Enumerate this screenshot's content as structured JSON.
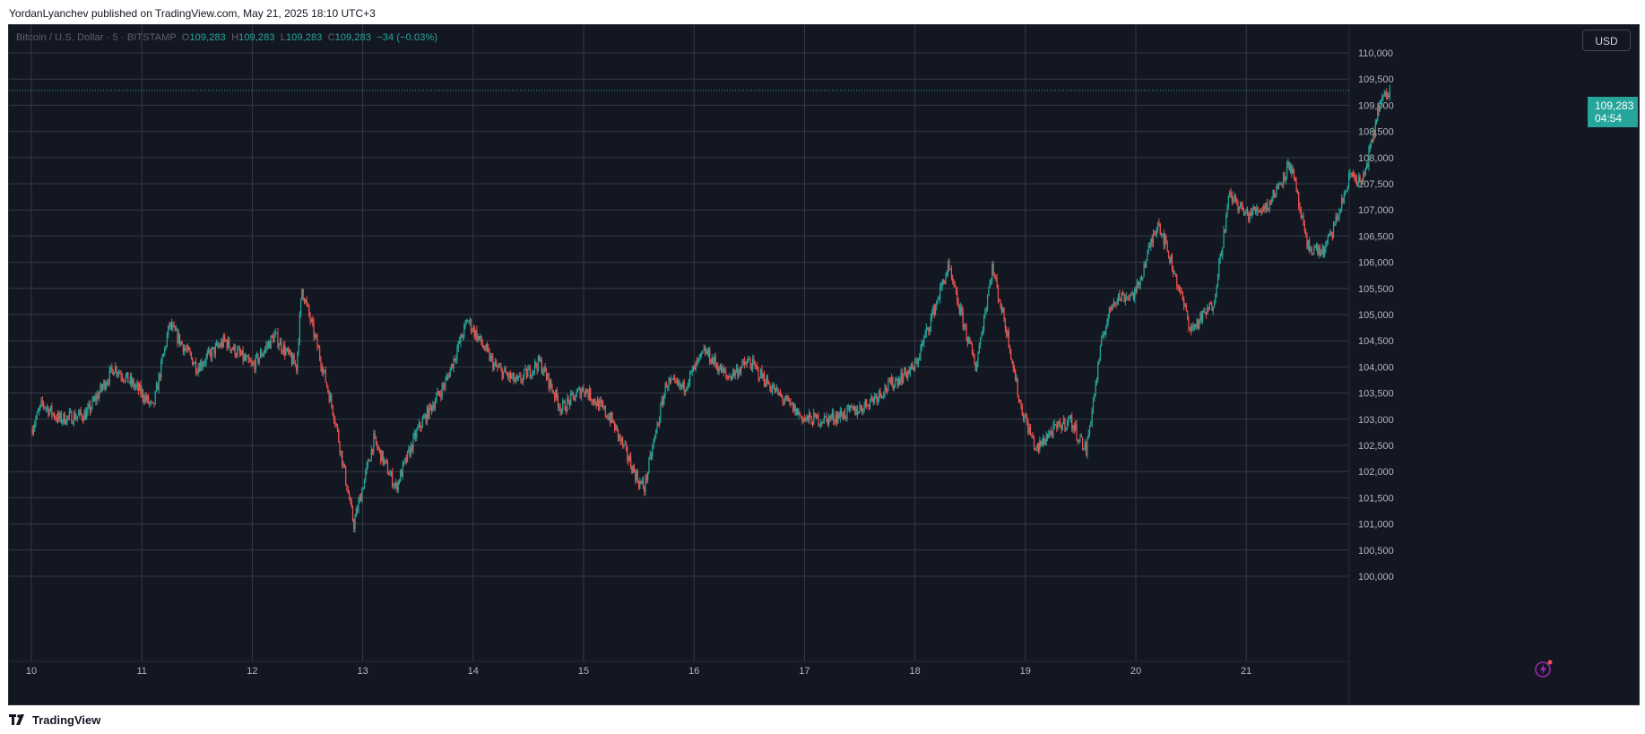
{
  "header": {
    "text": "YordanLyanchev published on TradingView.com, May 21, 2025 18:10 UTC+3"
  },
  "legend": {
    "symbol": "Bitcoin / U.S. Dollar · 5 · BITSTAMP",
    "o_label": "O",
    "o_value": "109,283",
    "h_label": "H",
    "h_value": "109,283",
    "l_label": "L",
    "l_value": "109,283",
    "c_label": "C",
    "c_value": "109,283",
    "change": "−34 (−0.03%)"
  },
  "currency_button": {
    "label": "USD"
  },
  "last_price": {
    "price": "109,283",
    "countdown": "04:54"
  },
  "footer": {
    "brand": "TradingView"
  },
  "icons": {
    "logo": "tradingview-logo-icon",
    "flash": "lightning-icon"
  },
  "colors": {
    "background": "#131722",
    "grid": "#363a45",
    "up": "#26a69a",
    "down": "#ef5350",
    "axis_text": "#b2b5be"
  },
  "chart_data": {
    "type": "candlestick",
    "title": "Bitcoin / U.S. Dollar · 5 · BITSTAMP",
    "x_tick_labels": [
      "10",
      "11",
      "12",
      "13",
      "14",
      "15",
      "16",
      "17",
      "18",
      "19",
      "20",
      "21"
    ],
    "y_tick_labels": [
      "100,000",
      "100,500",
      "101,000",
      "101,500",
      "102,000",
      "102,500",
      "103,000",
      "103,500",
      "104,000",
      "104,500",
      "105,000",
      "105,500",
      "106,000",
      "106,500",
      "107,000",
      "107,500",
      "108,000",
      "108,500",
      "109,000",
      "109,500",
      "110,000"
    ],
    "ylim": [
      100000,
      110000
    ],
    "xlim": [
      0,
      12.6
    ],
    "grid": true,
    "last_value": 109283,
    "series": [
      {
        "x": [
          0,
          0.1,
          0.25,
          0.5,
          0.75,
          1.0,
          1.1,
          1.25,
          1.5,
          1.75,
          2.0,
          2.2,
          2.4,
          2.45,
          2.6,
          2.75,
          2.9,
          2.92,
          3.1,
          3.3,
          3.5,
          3.75,
          3.95,
          4.2,
          4.4,
          4.6,
          4.8,
          5.0,
          5.25,
          5.5,
          5.55,
          5.75,
          5.9,
          6.1,
          6.3,
          6.5,
          6.75,
          7.0,
          7.2,
          7.5,
          7.8,
          8.0,
          8.3,
          8.55,
          8.7,
          8.85,
          8.95,
          9.1,
          9.2,
          9.4,
          9.55,
          9.7,
          9.8,
          10.0,
          10.2,
          10.35,
          10.5,
          10.7,
          10.85,
          11.0,
          11.2,
          11.4,
          11.55,
          11.7,
          11.8,
          11.95,
          12.05,
          12.15,
          12.2,
          12.3
        ],
        "close": [
          102800,
          103300,
          103000,
          103100,
          104000,
          103500,
          103200,
          104800,
          104000,
          104500,
          104000,
          104600,
          104000,
          105500,
          104300,
          103000,
          101200,
          101000,
          102600,
          101700,
          102800,
          103700,
          104900,
          104000,
          103700,
          104100,
          103200,
          103600,
          103000,
          101800,
          101700,
          103700,
          103600,
          104300,
          103800,
          104100,
          103500,
          103000,
          103000,
          103200,
          103700,
          104000,
          105900,
          104000,
          105900,
          104500,
          103300,
          102400,
          102700,
          103000,
          102400,
          104600,
          105300,
          105400,
          106800,
          105800,
          104700,
          105200,
          107300,
          106900,
          107100,
          107900,
          106300,
          106200,
          106700,
          107700,
          107500,
          108400,
          109000,
          109283
        ]
      }
    ]
  }
}
